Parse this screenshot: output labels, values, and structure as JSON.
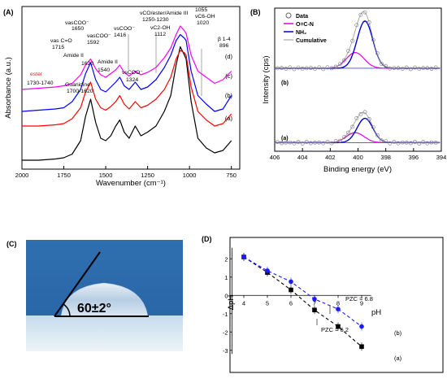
{
  "panels": {
    "A": {
      "label": "(A)",
      "xlabel": "Wavenumber (cm⁻¹)",
      "ylabel": "Absorbance (a.u.)",
      "xticks": [
        "2000",
        "1750",
        "1500",
        "1250",
        "1000",
        "750"
      ],
      "curve_labels": [
        "(d)",
        "(c)",
        "(b)",
        "(a)"
      ],
      "annotations": [
        {
          "text": "νasCOO⁻",
          "sub": "1650"
        },
        {
          "text": "νas C=O",
          "sub": "1715"
        },
        {
          "text": "Amide II",
          "sub": "1620"
        },
        {
          "text": "νasCOO⁻",
          "sub": "1592"
        },
        {
          "text": "Amide II",
          "sub": "1540"
        },
        {
          "text": "νsCOO⁻",
          "sub": "1416"
        },
        {
          "text": "νsCOO⁻",
          "sub": "1324"
        },
        {
          "text": "νCO/ester/Amide III",
          "sub": "1250-1230"
        },
        {
          "text": "νC2-OH",
          "sub": "1112"
        },
        {
          "text": "1055",
          "sub": ""
        },
        {
          "text": "νC6-OH",
          "sub": "1020"
        },
        {
          "text": "β 1-4",
          "sub": "896"
        },
        {
          "text": "1730-1740",
          "sub": ""
        },
        {
          "text": "ester",
          "sub": ""
        },
        {
          "text": "Guanidine",
          "sub": "1700-1620"
        }
      ]
    },
    "B": {
      "label": "(B)",
      "xlabel": "Binding energy (eV)",
      "ylabel": "Intensity (cps)",
      "xticks": [
        "406",
        "404",
        "402",
        "400",
        "398",
        "396",
        "394"
      ],
      "legend": [
        "Data",
        "O=C-N",
        "NH₂",
        "Cumulative"
      ],
      "curve_labels": [
        "(b)",
        "(a)"
      ]
    },
    "C": {
      "label": "(C)",
      "angle": "60±2°"
    },
    "D": {
      "label": "(D)",
      "xlabel": "pH",
      "ylabel": "ΔpH",
      "xticks": [
        "4",
        "5",
        "6",
        "7",
        "8",
        "9"
      ],
      "yticks": [
        "2",
        "1",
        "0",
        "-1",
        "-2",
        "-3"
      ],
      "pzc_a": "PZC = 6.2",
      "pzc_b": "PZC = 6.8",
      "series_labels": [
        "(b)",
        "(a)"
      ]
    }
  },
  "chart_data": [
    {
      "type": "line",
      "title": "",
      "xlabel": "Wavenumber (cm⁻¹)",
      "ylabel": "Absorbance (a.u.)",
      "xlim": [
        2000,
        700
      ],
      "x": [
        2000,
        1900,
        1800,
        1750,
        1700,
        1650,
        1620,
        1590,
        1560,
        1530,
        1500,
        1470,
        1440,
        1416,
        1390,
        1360,
        1324,
        1290,
        1250,
        1200,
        1150,
        1112,
        1080,
        1055,
        1030,
        1020,
        990,
        950,
        900,
        850,
        800,
        750
      ],
      "series": [
        {
          "name": "(a)",
          "color": "#000000",
          "values": [
            0.02,
            0.02,
            0.03,
            0.04,
            0.07,
            0.18,
            0.38,
            0.52,
            0.33,
            0.2,
            0.18,
            0.22,
            0.3,
            0.35,
            0.25,
            0.2,
            0.3,
            0.22,
            0.25,
            0.3,
            0.42,
            0.55,
            0.8,
            0.95,
            0.88,
            0.85,
            0.5,
            0.2,
            0.12,
            0.08,
            0.1,
            0.18
          ]
        },
        {
          "name": "(b)",
          "color": "#ff0000",
          "values": [
            0.3,
            0.3,
            0.31,
            0.32,
            0.36,
            0.45,
            0.58,
            0.66,
            0.52,
            0.45,
            0.43,
            0.46,
            0.5,
            0.55,
            0.48,
            0.44,
            0.5,
            0.45,
            0.47,
            0.52,
            0.6,
            0.7,
            0.85,
            0.92,
            0.9,
            0.88,
            0.62,
            0.42,
            0.35,
            0.3,
            0.32,
            0.4
          ]
        },
        {
          "name": "(c)",
          "color": "#0000ff",
          "values": [
            0.42,
            0.43,
            0.44,
            0.45,
            0.5,
            0.6,
            0.73,
            0.82,
            0.68,
            0.6,
            0.58,
            0.62,
            0.66,
            0.7,
            0.63,
            0.6,
            0.66,
            0.6,
            0.62,
            0.68,
            0.78,
            0.88,
            1.0,
            1.05,
            1.02,
            1.0,
            0.75,
            0.55,
            0.48,
            0.42,
            0.44,
            0.55
          ]
        },
        {
          "name": "(d)",
          "color": "#ff00ff",
          "values": [
            0.6,
            0.61,
            0.62,
            0.63,
            0.65,
            0.72,
            0.8,
            0.85,
            0.77,
            0.72,
            0.7,
            0.73,
            0.76,
            0.8,
            0.74,
            0.71,
            0.75,
            0.72,
            0.74,
            0.78,
            0.86,
            0.94,
            1.05,
            1.12,
            1.08,
            1.06,
            0.88,
            0.75,
            0.7,
            0.65,
            0.68,
            0.75
          ]
        }
      ]
    },
    {
      "type": "line",
      "title": "",
      "xlabel": "Binding energy (eV)",
      "ylabel": "Intensity (cps)",
      "xlim": [
        406,
        394
      ],
      "spectra": [
        {
          "name": "(b)",
          "baseline": 0.58,
          "peaks": [
            {
              "name": "O=C-N",
              "center": 400.2,
              "height": 0.11,
              "width": 0.9
            },
            {
              "name": "NH₂",
              "center": 399.5,
              "height": 0.33,
              "width": 0.8
            }
          ]
        },
        {
          "name": "(a)",
          "baseline": 0.06,
          "peaks": [
            {
              "name": "O=C-N",
              "center": 400.2,
              "height": 0.07,
              "width": 0.9
            },
            {
              "name": "NH₂",
              "center": 399.5,
              "height": 0.17,
              "width": 0.8
            }
          ]
        }
      ]
    },
    {
      "type": "line",
      "title": "",
      "xlabel": "pH",
      "ylabel": "ΔpH",
      "xlim": [
        3.5,
        9.5
      ],
      "ylim": [
        -3.3,
        2.7
      ],
      "x": [
        4,
        5,
        6,
        7,
        8,
        9
      ],
      "series": [
        {
          "name": "(a)",
          "color": "#000000",
          "values": [
            2.1,
            1.25,
            0.3,
            -0.8,
            -1.7,
            -2.8
          ]
        },
        {
          "name": "(b)",
          "color": "#1a1aff",
          "values": [
            2.1,
            1.35,
            0.75,
            -0.2,
            -0.75,
            -1.7
          ]
        }
      ]
    }
  ]
}
